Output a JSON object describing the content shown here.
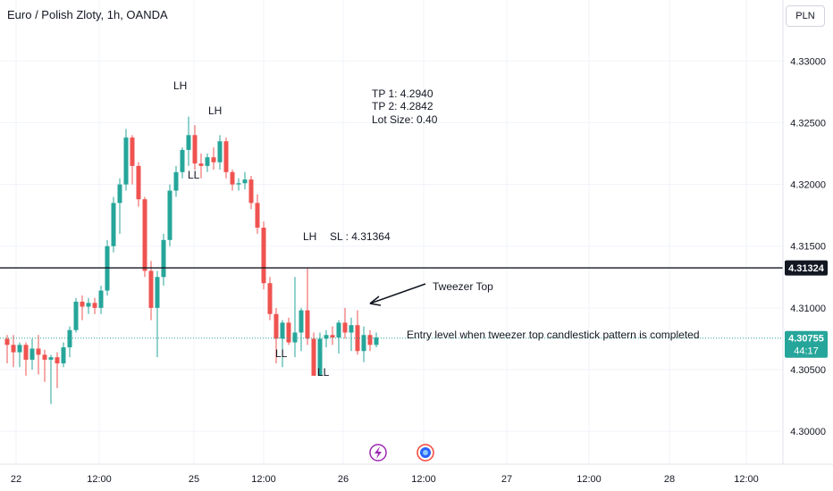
{
  "header": {
    "symbol_title": "Euro / Polish Zloty, 1h, OANDA",
    "currency_button": "PLN"
  },
  "colors": {
    "up": "#26a69a",
    "down": "#ef5350",
    "line": "#131722",
    "current_price_line": "#26a69a",
    "axis_text": "#131722",
    "grid": "#f0f3fa",
    "icon_purple": "#9c27b0",
    "icon_blue": "#2962ff",
    "icon_red": "#f44336"
  },
  "chart_data": {
    "type": "candlestick",
    "ylim": [
      4.2995,
      4.3335
    ],
    "y_ticks": [
      "4.33000",
      "4.32500",
      "4.32000",
      "4.31500",
      "4.31000",
      "4.30500",
      "4.30000"
    ],
    "x_tick_labels": [
      "22",
      "12:00",
      "25",
      "12:00",
      "26",
      "12:00",
      "27",
      "12:00",
      "28",
      "12:00"
    ],
    "candles": [
      {
        "o": 4.3075,
        "h": 4.3078,
        "l": 4.3055,
        "c": 4.307
      },
      {
        "o": 4.307,
        "h": 4.3078,
        "l": 4.3052,
        "c": 4.3064
      },
      {
        "o": 4.3064,
        "h": 4.3072,
        "l": 4.3052,
        "c": 4.307
      },
      {
        "o": 4.307,
        "h": 4.3072,
        "l": 4.3045,
        "c": 4.3058
      },
      {
        "o": 4.3058,
        "h": 4.3075,
        "l": 4.305,
        "c": 4.3067
      },
      {
        "o": 4.3067,
        "h": 4.3078,
        "l": 4.3046,
        "c": 4.3062
      },
      {
        "o": 4.3062,
        "h": 4.3066,
        "l": 4.304,
        "c": 4.3058
      },
      {
        "o": 4.3058,
        "h": 4.3062,
        "l": 4.3022,
        "c": 4.306
      },
      {
        "o": 4.306,
        "h": 4.3064,
        "l": 4.3035,
        "c": 4.3055
      },
      {
        "o": 4.3055,
        "h": 4.3072,
        "l": 4.3052,
        "c": 4.3068
      },
      {
        "o": 4.3068,
        "h": 4.3085,
        "l": 4.306,
        "c": 4.3082
      },
      {
        "o": 4.3082,
        "h": 4.3108,
        "l": 4.308,
        "c": 4.3105
      },
      {
        "o": 4.3105,
        "h": 4.311,
        "l": 4.309,
        "c": 4.3101
      },
      {
        "o": 4.3101,
        "h": 4.3108,
        "l": 4.3095,
        "c": 4.3104
      },
      {
        "o": 4.3104,
        "h": 4.3108,
        "l": 4.3095,
        "c": 4.31
      },
      {
        "o": 4.31,
        "h": 4.3118,
        "l": 4.3095,
        "c": 4.3114
      },
      {
        "o": 4.3114,
        "h": 4.3155,
        "l": 4.311,
        "c": 4.315
      },
      {
        "o": 4.315,
        "h": 4.319,
        "l": 4.3145,
        "c": 4.3185
      },
      {
        "o": 4.3185,
        "h": 4.3205,
        "l": 4.316,
        "c": 4.32
      },
      {
        "o": 4.32,
        "h": 4.3245,
        "l": 4.3195,
        "c": 4.3238
      },
      {
        "o": 4.3238,
        "h": 4.324,
        "l": 4.32,
        "c": 4.3215
      },
      {
        "o": 4.3215,
        "h": 4.3218,
        "l": 4.3182,
        "c": 4.3188
      },
      {
        "o": 4.3188,
        "h": 4.319,
        "l": 4.3125,
        "c": 4.313
      },
      {
        "o": 4.313,
        "h": 4.3138,
        "l": 4.309,
        "c": 4.31
      },
      {
        "o": 4.31,
        "h": 4.313,
        "l": 4.306,
        "c": 4.3125
      },
      {
        "o": 4.3125,
        "h": 4.316,
        "l": 4.3118,
        "c": 4.3155
      },
      {
        "o": 4.3155,
        "h": 4.32,
        "l": 4.315,
        "c": 4.3195
      },
      {
        "o": 4.3195,
        "h": 4.3215,
        "l": 4.319,
        "c": 4.321
      },
      {
        "o": 4.321,
        "h": 4.323,
        "l": 4.3205,
        "c": 4.3228
      },
      {
        "o": 4.3228,
        "h": 4.3255,
        "l": 4.3215,
        "c": 4.324
      },
      {
        "o": 4.324,
        "h": 4.3248,
        "l": 4.3212,
        "c": 4.3217
      },
      {
        "o": 4.3217,
        "h": 4.3225,
        "l": 4.3205,
        "c": 4.3215
      },
      {
        "o": 4.3215,
        "h": 4.3225,
        "l": 4.321,
        "c": 4.3222
      },
      {
        "o": 4.3222,
        "h": 4.323,
        "l": 4.3212,
        "c": 4.3218
      },
      {
        "o": 4.3218,
        "h": 4.324,
        "l": 4.3212,
        "c": 4.3235
      },
      {
        "o": 4.3235,
        "h": 4.3238,
        "l": 4.3205,
        "c": 4.321
      },
      {
        "o": 4.321,
        "h": 4.3212,
        "l": 4.3195,
        "c": 4.32
      },
      {
        "o": 4.32,
        "h": 4.3205,
        "l": 4.3195,
        "c": 4.3201
      },
      {
        "o": 4.3201,
        "h": 4.321,
        "l": 4.3196,
        "c": 4.3204
      },
      {
        "o": 4.3204,
        "h": 4.3207,
        "l": 4.318,
        "c": 4.3185
      },
      {
        "o": 4.3185,
        "h": 4.3192,
        "l": 4.316,
        "c": 4.3165
      },
      {
        "o": 4.3165,
        "h": 4.317,
        "l": 4.3115,
        "c": 4.312
      },
      {
        "o": 4.312,
        "h": 4.3125,
        "l": 4.309,
        "c": 4.3095
      },
      {
        "o": 4.3095,
        "h": 4.31,
        "l": 4.3055,
        "c": 4.3075
      },
      {
        "o": 4.3075,
        "h": 4.309,
        "l": 4.3052,
        "c": 4.3088
      },
      {
        "o": 4.3088,
        "h": 4.3092,
        "l": 4.307,
        "c": 4.3072
      },
      {
        "o": 4.3072,
        "h": 4.3125,
        "l": 4.306,
        "c": 4.308
      },
      {
        "o": 4.308,
        "h": 4.31,
        "l": 4.3065,
        "c": 4.3098
      },
      {
        "o": 4.3098,
        "h": 4.3132,
        "l": 4.307,
        "c": 4.3075
      },
      {
        "o": 4.3075,
        "h": 4.308,
        "l": 4.3045,
        "c": 4.3045
      },
      {
        "o": 4.3045,
        "h": 4.308,
        "l": 4.3045,
        "c": 4.3075
      },
      {
        "o": 4.3075,
        "h": 4.3082,
        "l": 4.3068,
        "c": 4.3078
      },
      {
        "o": 4.3078,
        "h": 4.3085,
        "l": 4.307,
        "c": 4.3076
      },
      {
        "o": 4.3076,
        "h": 4.309,
        "l": 4.3063,
        "c": 4.3088
      },
      {
        "o": 4.3088,
        "h": 4.31,
        "l": 4.3075,
        "c": 4.308
      },
      {
        "o": 4.308,
        "h": 4.3092,
        "l": 4.3065,
        "c": 4.3086
      },
      {
        "o": 4.3086,
        "h": 4.3098,
        "l": 4.3062,
        "c": 4.3065
      },
      {
        "o": 4.3065,
        "h": 4.3085,
        "l": 4.3056,
        "c": 4.3078
      },
      {
        "o": 4.3078,
        "h": 4.3082,
        "l": 4.3065,
        "c": 4.307
      },
      {
        "o": 4.307,
        "h": 4.308,
        "l": 4.3068,
        "c": 4.3076
      }
    ],
    "horizontal_lines": [
      {
        "price": 4.31324,
        "style": "solid",
        "label": "4.31324"
      },
      {
        "price": 4.30755,
        "style": "dotted",
        "label": "4.30755",
        "sublabel": "44:17"
      }
    ],
    "annotations": {
      "lh_1": "LH",
      "lh_2": "LH",
      "ll_1": "LL",
      "lh_3": "LH",
      "sl_label": "SL : 4.31364",
      "ll_2": "LL",
      "ll_3": "LL",
      "tp1": "TP 1: 4.2940",
      "tp2": "TP 2: 4.2842",
      "lot_size": "Lot Size: 0.40",
      "tweezer_top": "Tweezer Top",
      "entry_note": "Entry level when tweezer top candlestick pattern is completed"
    },
    "event_icons": [
      "lightning",
      "flag"
    ]
  }
}
